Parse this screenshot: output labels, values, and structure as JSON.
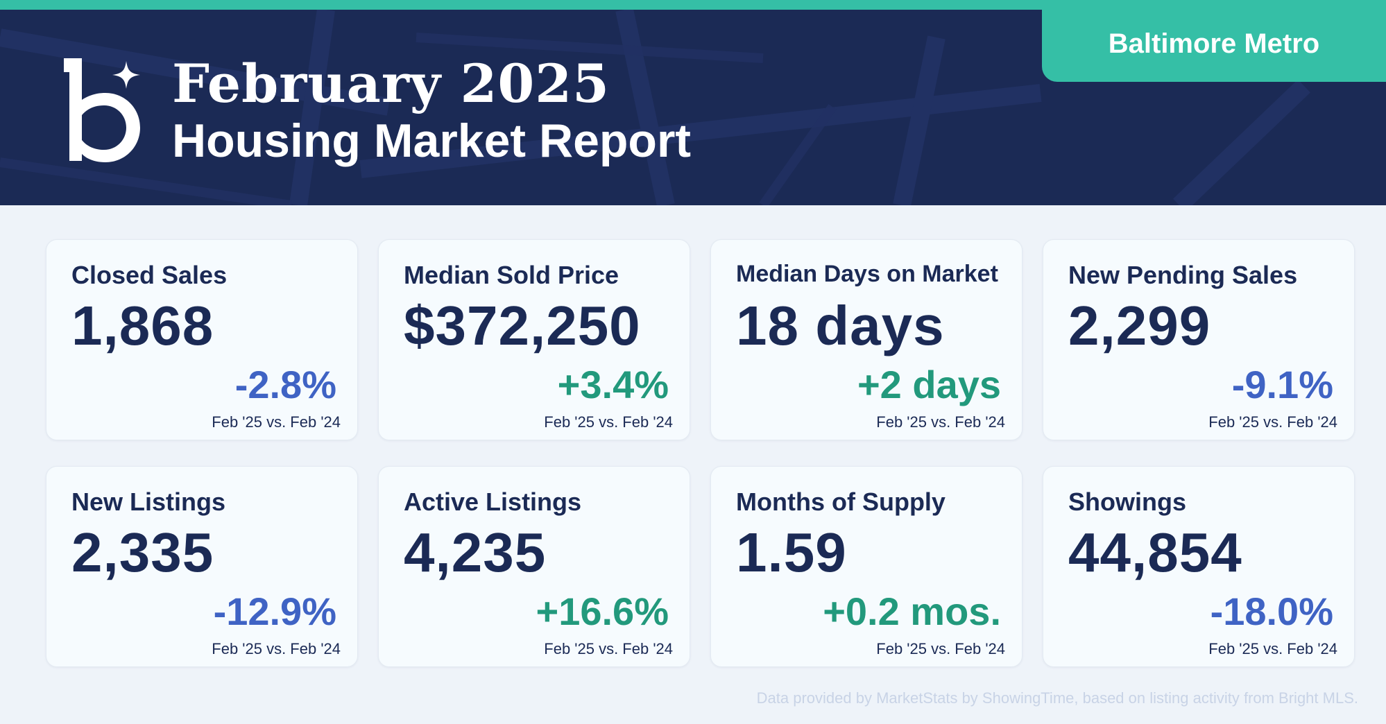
{
  "header": {
    "title_line1": "February 2025",
    "title_line2": "Housing Market Report",
    "region": "Baltimore Metro",
    "logo_icon": "b-sparkle-logo-icon"
  },
  "colors": {
    "navy": "#1b2a55",
    "teal": "#35bfa6",
    "negative": "#3f63c4",
    "positive": "#22997c",
    "background": "#eef3f9"
  },
  "metrics": [
    {
      "label": "Closed Sales",
      "value": "1,868",
      "change": "-2.8%",
      "trend": "negative",
      "compare": "Feb '25 vs. Feb '24"
    },
    {
      "label": "Median Sold Price",
      "value": "$372,250",
      "change": "+3.4%",
      "trend": "positive",
      "compare": "Feb '25 vs. Feb '24"
    },
    {
      "label": "Median Days on Market",
      "value": "18 days",
      "change": "+2 days",
      "trend": "positive",
      "compare": "Feb '25 vs. Feb '24"
    },
    {
      "label": "New Pending Sales",
      "value": "2,299",
      "change": "-9.1%",
      "trend": "negative",
      "compare": "Feb '25 vs. Feb '24"
    },
    {
      "label": "New Listings",
      "value": "2,335",
      "change": "-12.9%",
      "trend": "negative",
      "compare": "Feb '25 vs. Feb '24"
    },
    {
      "label": "Active Listings",
      "value": "4,235",
      "change": "+16.6%",
      "trend": "positive",
      "compare": "Feb '25 vs. Feb '24"
    },
    {
      "label": "Months of Supply",
      "value": "1.59",
      "change": "+0.2 mos.",
      "trend": "positive",
      "compare": "Feb '25 vs. Feb '24"
    },
    {
      "label": "Showings",
      "value": "44,854",
      "change": "-18.0%",
      "trend": "negative",
      "compare": "Feb '25 vs. Feb '24"
    }
  ],
  "footer": {
    "note": "Data provided by MarketStats by ShowingTime, based on listing activity from Bright MLS."
  }
}
